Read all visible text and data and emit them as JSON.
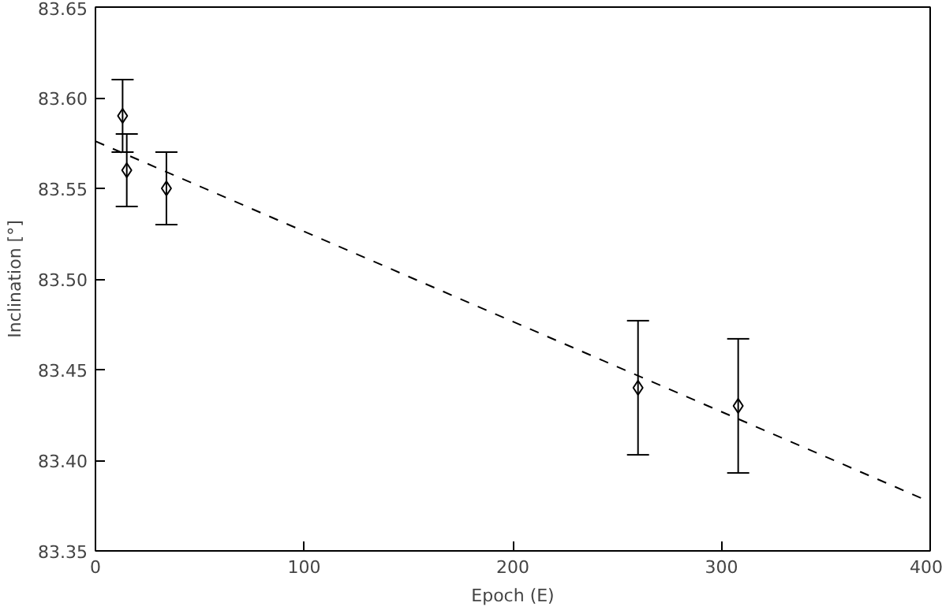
{
  "chart_data": {
    "type": "scatter",
    "xlabel": "Epoch (E)",
    "ylabel": "Inclination [°]",
    "xlim": [
      0,
      400
    ],
    "ylim": [
      83.35,
      83.65
    ],
    "xticks": [
      0,
      100,
      200,
      300,
      400
    ],
    "yticks": [
      {
        "value": 83.35,
        "label": "83.35"
      },
      {
        "value": 83.4,
        "label": "83.40"
      },
      {
        "value": 83.45,
        "label": "83.45"
      },
      {
        "value": 83.5,
        "label": "83.50"
      },
      {
        "value": 83.55,
        "label": "83.55"
      },
      {
        "value": 83.6,
        "label": "83.60"
      },
      {
        "value": 83.65,
        "label": "83.65"
      }
    ],
    "grid": false,
    "series": [
      {
        "marker": "diamond",
        "color": "#000000",
        "x": [
          13,
          15,
          34,
          260,
          308
        ],
        "values": [
          83.59,
          83.56,
          83.55,
          83.44,
          83.43
        ],
        "errors": [
          0.02,
          0.02,
          0.02,
          0.037,
          0.037
        ]
      },
      {
        "type": "line",
        "color": "#000000",
        "line_style": "dashed",
        "x": [
          0,
          400
        ],
        "values": [
          83.576,
          83.377
        ]
      }
    ]
  }
}
